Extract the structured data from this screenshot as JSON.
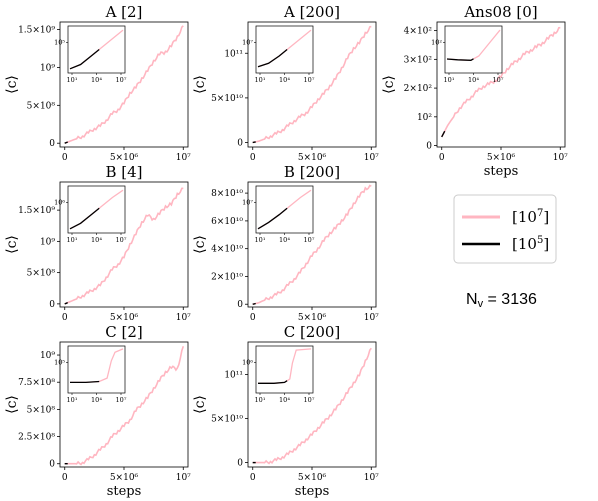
{
  "figure": {
    "nv_label": "N",
    "nv_sub": "v",
    "nv_value": " = 3136",
    "legend": [
      {
        "label": "[10",
        "exp": "7",
        "close": "]",
        "color": "#ffb6c1"
      },
      {
        "label": "[10",
        "exp": "5",
        "close": "]",
        "color": "#000000"
      }
    ]
  },
  "chart_data": [
    {
      "type": "line",
      "title": "A [2]",
      "ylabel": "⟨c⟩",
      "xlabel": "",
      "x": [
        0,
        500000,
        1000000,
        1500000,
        2000000,
        2500000,
        3000000,
        3500000,
        4000000,
        4500000,
        5000000,
        5500000,
        6000000,
        6500000,
        7000000,
        7500000,
        8000000,
        8500000,
        9000000,
        9500000,
        10000000
      ],
      "series": [
        {
          "name": "[10^7]",
          "values": [
            0,
            30000000.0,
            60000000.0,
            90000000.0,
            140000000.0,
            190000000.0,
            230000000.0,
            300000000.0,
            390000000.0,
            440000000.0,
            530000000.0,
            660000000.0,
            740000000.0,
            850000000.0,
            960000000.0,
            1080000000.0,
            1180000000.0,
            1200000000.0,
            1290000000.0,
            1400000000.0,
            1550000000.0
          ]
        }
      ],
      "yticks": [
        {
          "v": 0,
          "t": "0"
        },
        {
          "v": 500000000.0,
          "t": "5×10⁸"
        },
        {
          "v": 1000000000.0,
          "t": "10⁹"
        },
        {
          "v": 1500000000.0,
          "t": "1.5×10⁹"
        }
      ],
      "ylim": [
        -50000000.0,
        1600000000.0
      ],
      "inset": {
        "yticks": [
          {
            "t": "10⁵"
          }
        ],
        "xticks": [
          "10¹",
          "10⁴",
          "10⁷"
        ]
      }
    },
    {
      "type": "line",
      "title": "A [200]",
      "ylabel": "⟨c⟩",
      "xlabel": "",
      "x": [
        0,
        500000,
        1000000,
        1500000,
        2000000,
        2500000,
        3000000,
        3500000,
        4000000,
        4500000,
        5000000,
        5500000,
        6000000,
        6500000,
        7000000,
        7500000,
        8000000,
        8500000,
        9000000,
        9500000,
        10000000
      ],
      "series": [
        {
          "name": "[10^7]",
          "values": [
            0,
            1500000000.0,
            4000000000.0,
            7000000000.0,
            10000000000.0,
            14000000000.0,
            19000000000.0,
            24000000000.0,
            29000000000.0,
            33000000000.0,
            40000000000.0,
            48000000000.0,
            55000000000.0,
            63000000000.0,
            72000000000.0,
            83000000000.0,
            95000000000.0,
            105000000000.0,
            112000000000.0,
            122000000000.0,
            130000000000.0
          ]
        }
      ],
      "yticks": [
        {
          "v": 0,
          "t": "0"
        },
        {
          "v": 50000000000.0,
          "t": "5×10¹⁰"
        },
        {
          "v": 100000000000.0,
          "t": "10¹¹"
        }
      ],
      "ylim": [
        -5000000000.0,
        135000000000.0
      ],
      "inset": {
        "yticks": [
          {
            "t": "10⁷"
          }
        ],
        "xticks": [
          "10¹",
          "10⁴",
          "10⁷"
        ]
      }
    },
    {
      "type": "line",
      "title": "Ans08 [0]",
      "ylabel": "⟨c⟩",
      "xlabel": "steps",
      "x": [
        0,
        500000,
        1000000,
        1500000,
        2000000,
        2500000,
        3000000,
        3500000,
        4000000,
        4500000,
        5000000,
        5500000,
        6000000,
        6500000,
        7000000,
        7500000,
        8000000,
        8500000,
        9000000,
        9500000,
        10000000
      ],
      "series": [
        {
          "name": "[10^7]",
          "values": [
            30,
            70,
            100,
            130,
            150,
            170,
            190,
            205,
            215,
            225,
            240,
            265,
            285,
            300,
            320,
            330,
            345,
            355,
            375,
            390,
            410
          ]
        }
      ],
      "yticks": [
        {
          "v": 0,
          "t": "0"
        },
        {
          "v": 100,
          "t": "10²"
        },
        {
          "v": 200,
          "t": "2×10²"
        },
        {
          "v": 300,
          "t": "3×10²"
        },
        {
          "v": 400,
          "t": "4×10²"
        }
      ],
      "ylim": [
        -5,
        430
      ],
      "inset": {
        "yticks": [
          {
            "t": "10²"
          }
        ],
        "xticks": [
          "10¹",
          "10⁴",
          "10⁷"
        ]
      }
    },
    {
      "type": "line",
      "title": "B [4]",
      "ylabel": "⟨c⟩",
      "xlabel": "",
      "x": [
        0,
        500000,
        1000000,
        1500000,
        2000000,
        2500000,
        3000000,
        3500000,
        4000000,
        4500000,
        5000000,
        5500000,
        6000000,
        6500000,
        7000000,
        7500000,
        8000000,
        8500000,
        9000000,
        9500000,
        10000000
      ],
      "series": [
        {
          "name": "[10^7]",
          "values": [
            0,
            40000000.0,
            80000000.0,
            130000000.0,
            180000000.0,
            240000000.0,
            300000000.0,
            420000000.0,
            550000000.0,
            630000000.0,
            750000000.0,
            950000000.0,
            1120000000.0,
            1300000000.0,
            1420000000.0,
            1350000000.0,
            1450000000.0,
            1550000000.0,
            1600000000.0,
            1750000000.0,
            1850000000.0
          ]
        }
      ],
      "yticks": [
        {
          "v": 0,
          "t": "0"
        },
        {
          "v": 500000000.0,
          "t": "5×10⁸"
        },
        {
          "v": 1000000000.0,
          "t": "10⁹"
        },
        {
          "v": 1500000000.0,
          "t": "1.5×10⁹"
        }
      ],
      "ylim": [
        -50000000.0,
        1950000000.0
      ],
      "inset": {
        "yticks": [
          {
            "t": "10⁶"
          }
        ],
        "xticks": [
          "10¹",
          "10⁴",
          "10⁷"
        ]
      }
    },
    {
      "type": "line",
      "title": "B [200]",
      "ylabel": "⟨c⟩",
      "xlabel": "",
      "x": [
        0,
        500000,
        1000000,
        1500000,
        2000000,
        2500000,
        3000000,
        3500000,
        4000000,
        4500000,
        5000000,
        5500000,
        6000000,
        6500000,
        7000000,
        7500000,
        8000000,
        8500000,
        9000000,
        9500000,
        10000000
      ],
      "series": [
        {
          "name": "[10^7]",
          "values": [
            0,
            1000000000.0,
            3000000000.0,
            5000000000.0,
            7000000000.0,
            10000000000.0,
            14000000000.0,
            18000000000.0,
            23000000000.0,
            29000000000.0,
            35000000000.0,
            40000000000.0,
            46000000000.0,
            51000000000.0,
            55000000000.0,
            60000000000.0,
            65000000000.0,
            72000000000.0,
            78000000000.0,
            83000000000.0,
            85000000000.0
          ]
        }
      ],
      "yticks": [
        {
          "v": 0,
          "t": "0"
        },
        {
          "v": 20000000000.0,
          "t": "2×10¹⁰"
        },
        {
          "v": 40000000000.0,
          "t": "4×10¹⁰"
        },
        {
          "v": 60000000000.0,
          "t": "6×10¹⁰"
        },
        {
          "v": 80000000000.0,
          "t": "8×10¹⁰"
        }
      ],
      "ylim": [
        -2000000000.0,
        88000000000.0
      ],
      "inset": {
        "yticks": [
          {
            "t": "10⁷"
          }
        ],
        "xticks": [
          "10¹",
          "10⁴",
          "10⁷"
        ]
      }
    },
    {
      "type": "line",
      "title": "C [2]",
      "ylabel": "⟨c⟩",
      "xlabel": "steps",
      "x": [
        0,
        500000,
        1000000,
        1500000,
        2000000,
        2500000,
        3000000,
        3500000,
        4000000,
        4500000,
        5000000,
        5500000,
        6000000,
        6500000,
        7000000,
        7500000,
        8000000,
        8500000,
        9000000,
        9500000,
        10000000
      ],
      "series": [
        {
          "name": "[10^7]",
          "values": [
            0,
            0,
            0,
            10000000.0,
            40000000.0,
            80000000.0,
            130000000.0,
            180000000.0,
            250000000.0,
            300000000.0,
            350000000.0,
            400000000.0,
            490000000.0,
            550000000.0,
            610000000.0,
            690000000.0,
            770000000.0,
            840000000.0,
            890000000.0,
            870000000.0,
            1080000000.0
          ]
        }
      ],
      "yticks": [
        {
          "v": 0,
          "t": "0"
        },
        {
          "v": 250000000.0,
          "t": "2.5×10⁸"
        },
        {
          "v": 500000000.0,
          "t": "5×10⁸"
        },
        {
          "v": 750000000.0,
          "t": "7.5×10⁸"
        },
        {
          "v": 1000000000.0,
          "t": "10⁹"
        }
      ],
      "ylim": [
        -30000000.0,
        1120000000.0
      ],
      "inset": {
        "yticks": [
          {
            "t": "10⁵"
          }
        ],
        "xticks": [
          "10¹",
          "10⁴",
          "10⁷"
        ]
      }
    },
    {
      "type": "line",
      "title": "C [200]",
      "ylabel": "⟨c⟩",
      "xlabel": "steps",
      "x": [
        0,
        500000,
        1000000,
        1500000,
        2000000,
        2500000,
        3000000,
        3500000,
        4000000,
        4500000,
        5000000,
        5500000,
        6000000,
        6500000,
        7000000,
        7500000,
        8000000,
        8500000,
        9000000,
        9500000,
        10000000
      ],
      "series": [
        {
          "name": "[10^7]",
          "values": [
            0,
            0,
            0,
            1000000000.0,
            3000000000.0,
            6000000000.0,
            10000000000.0,
            15000000000.0,
            20000000000.0,
            26000000000.0,
            32000000000.0,
            39000000000.0,
            46000000000.0,
            53000000000.0,
            61000000000.0,
            70000000000.0,
            80000000000.0,
            90000000000.0,
            100000000000.0,
            115000000000.0,
            130000000000.0
          ]
        }
      ],
      "yticks": [
        {
          "v": 0,
          "t": "0"
        },
        {
          "v": 50000000000.0,
          "t": "5×10¹⁰"
        },
        {
          "v": 100000000000.0,
          "t": "10¹¹"
        }
      ],
      "ylim": [
        -5000000000.0,
        137000000000.0
      ],
      "inset": {
        "yticks": [
          {
            "t": "10⁶"
          }
        ],
        "xticks": [
          "10¹",
          "10⁴",
          "10⁷"
        ]
      }
    }
  ],
  "xticks": [
    {
      "v": 0,
      "t": "0"
    },
    {
      "v": 5000000,
      "t": "5×10⁶"
    },
    {
      "v": 10000000,
      "t": "10⁷"
    }
  ]
}
